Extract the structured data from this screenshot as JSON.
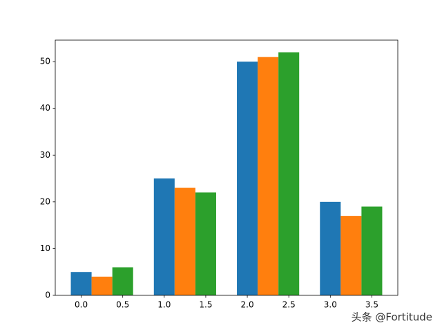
{
  "chart_data": {
    "type": "bar",
    "series": [
      {
        "color": "#1f77b4",
        "x": [
          0,
          1,
          2,
          3
        ],
        "values": [
          5,
          25,
          50,
          20
        ]
      },
      {
        "color": "#ff7f0e",
        "x": [
          0.25,
          1.25,
          2.25,
          3.25
        ],
        "values": [
          4,
          23,
          51,
          17
        ]
      },
      {
        "color": "#2ca02c",
        "x": [
          0.5,
          1.5,
          2.5,
          3.5
        ],
        "values": [
          6,
          22,
          52,
          19
        ]
      }
    ],
    "xlim": [
      -0.3125,
      3.8125
    ],
    "xticks": [
      {
        "value": 0,
        "label": "0.0"
      },
      {
        "value": 0.5,
        "label": "0.5"
      },
      {
        "value": 1,
        "label": "1.0"
      },
      {
        "value": 1.5,
        "label": "1.5"
      },
      {
        "value": 2,
        "label": "2.0"
      },
      {
        "value": 2.5,
        "label": "2.5"
      },
      {
        "value": 3,
        "label": "3.0"
      },
      {
        "value": 3.5,
        "label": "3.5"
      }
    ],
    "ylim": [
      0,
      54.6
    ],
    "yticks": [
      0,
      10,
      20,
      30,
      40,
      50
    ],
    "grid": false,
    "watermark": "头条 @Fortitude"
  }
}
